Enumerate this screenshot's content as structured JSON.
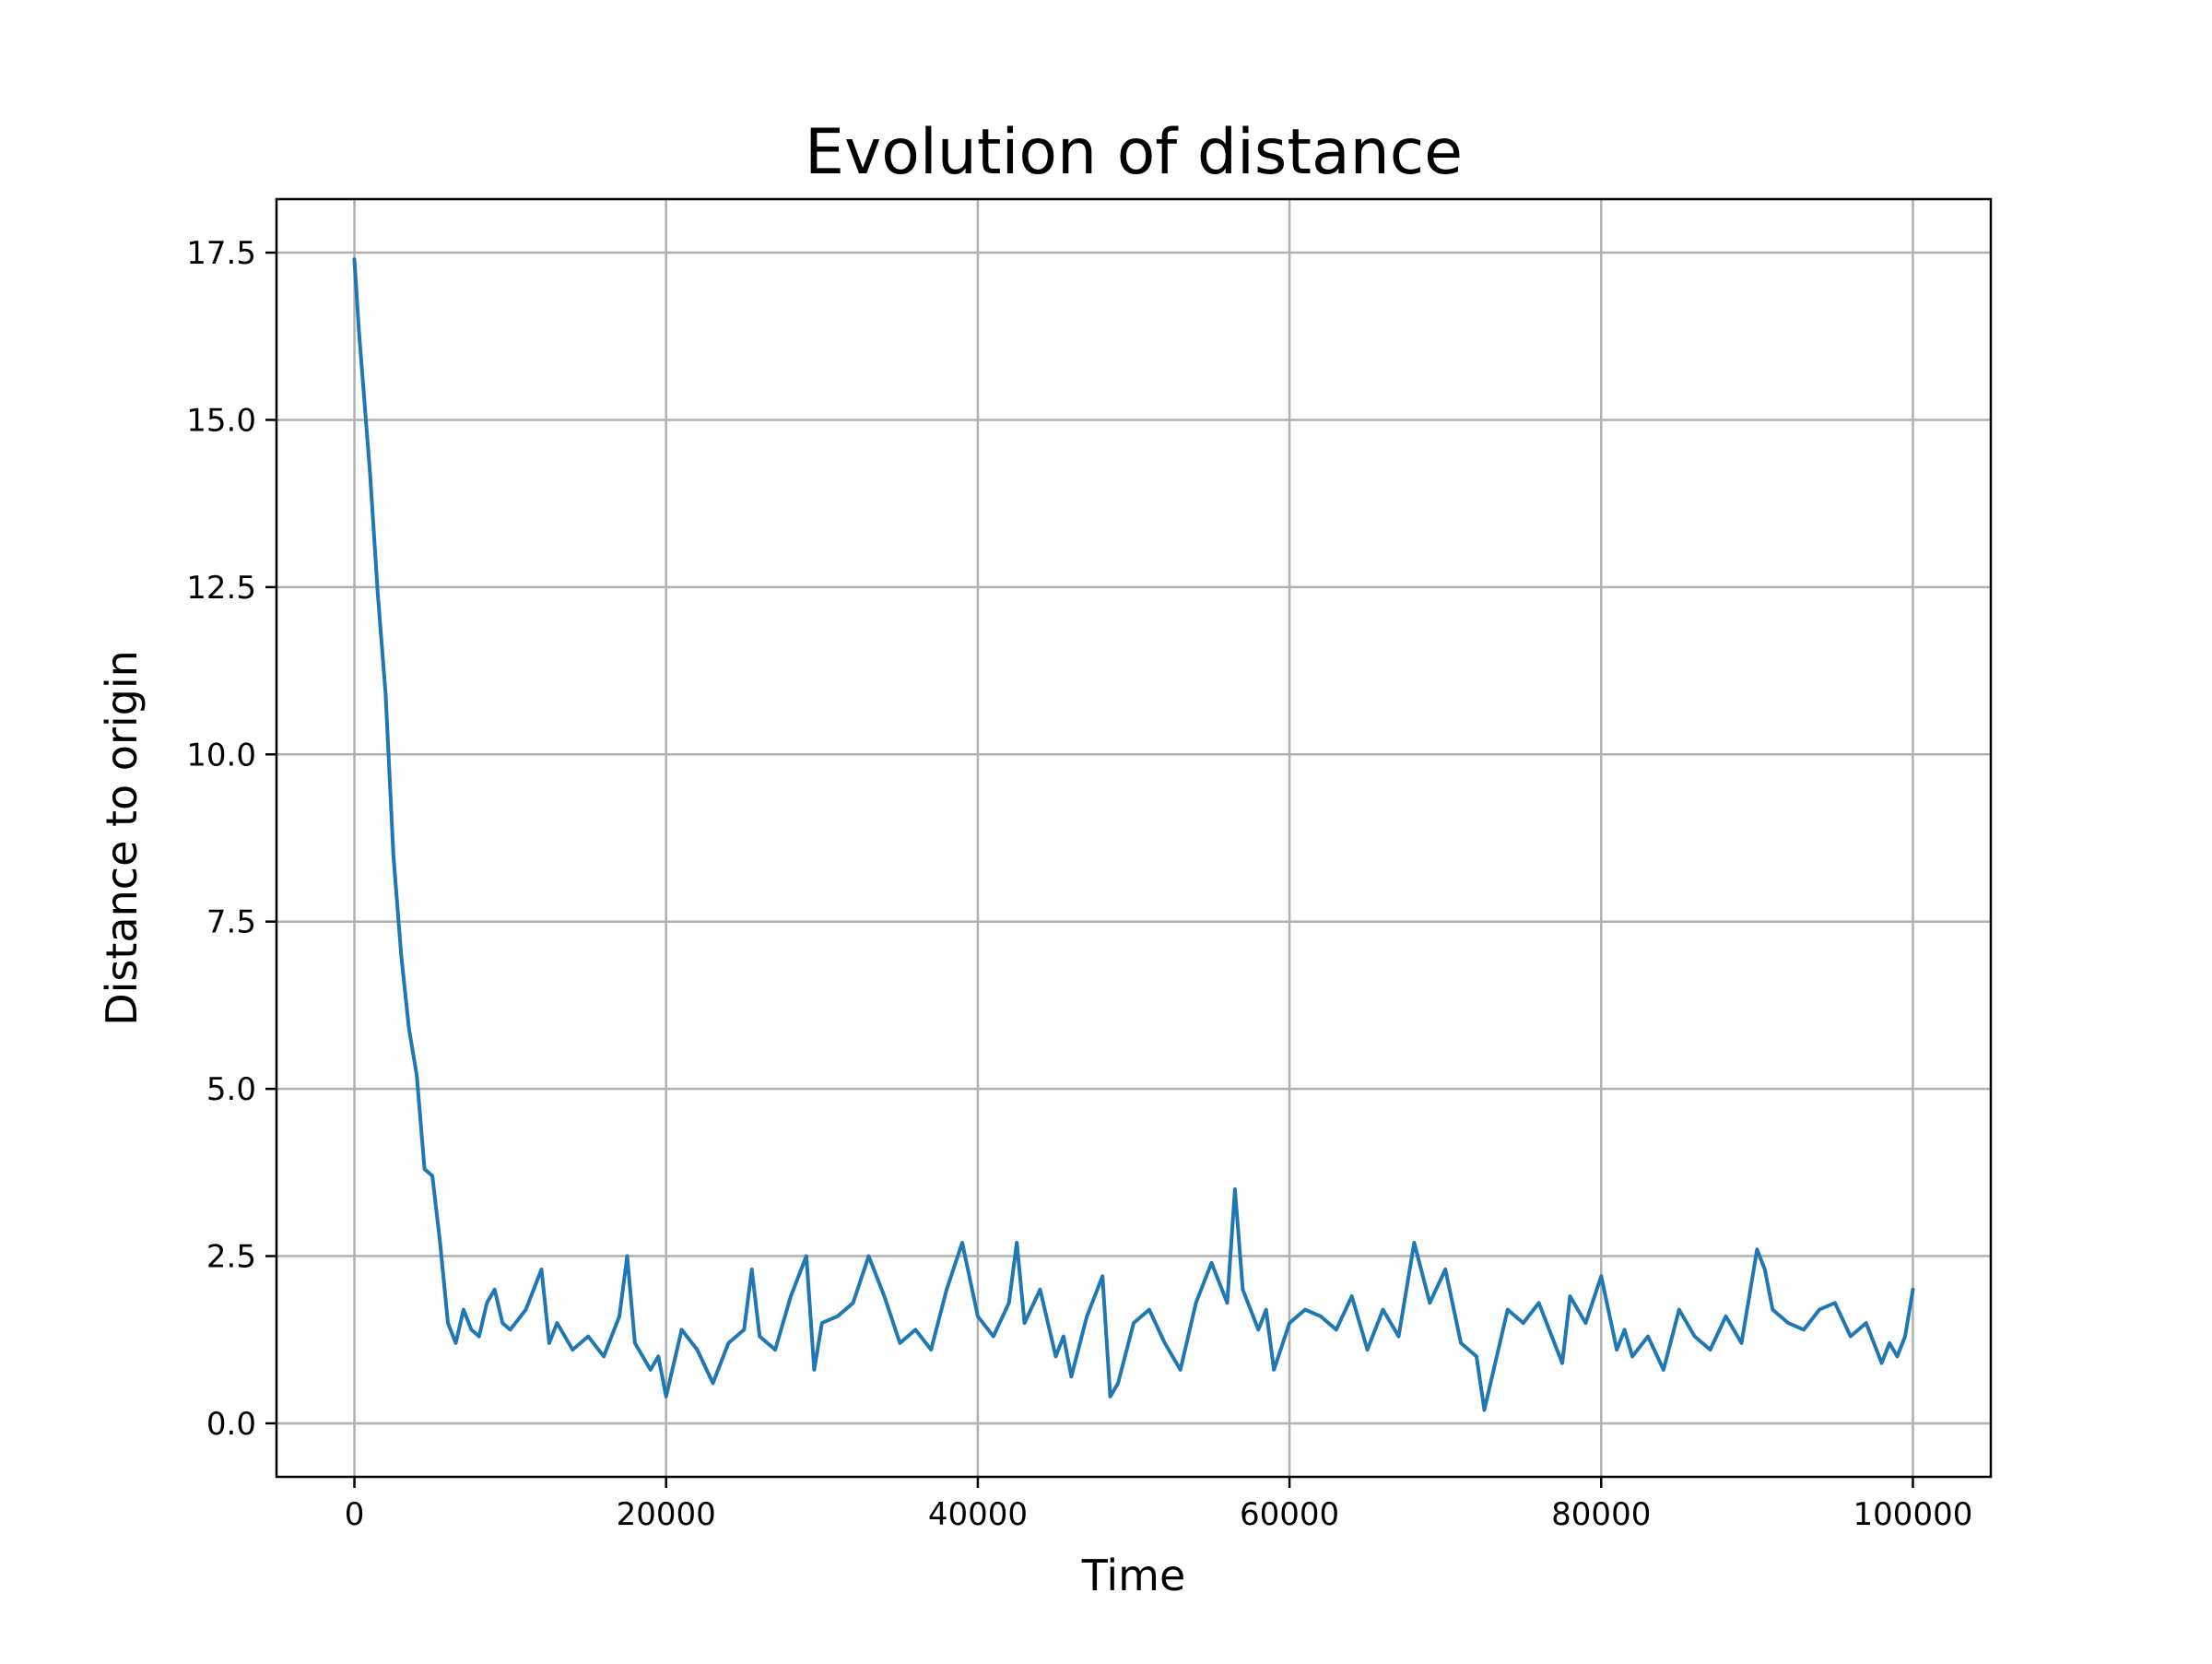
{
  "chart_data": {
    "type": "line",
    "title": "Evolution of distance",
    "xlabel": "Time",
    "ylabel": "Distance to origin",
    "xlim": [
      -5000,
      105000
    ],
    "ylim": [
      -0.8,
      18.3
    ],
    "xticks": [
      0,
      20000,
      40000,
      60000,
      80000,
      100000
    ],
    "xtick_labels": [
      "0",
      "20000",
      "40000",
      "60000",
      "80000",
      "100000"
    ],
    "yticks": [
      0.0,
      2.5,
      5.0,
      7.5,
      10.0,
      12.5,
      15.0,
      17.5
    ],
    "ytick_labels": [
      "0.0",
      "2.5",
      "5.0",
      "7.5",
      "10.0",
      "12.5",
      "15.0",
      "17.5"
    ],
    "grid": true,
    "legend": "none",
    "colors": {
      "line": "#1f77b4",
      "grid": "#b0b0b0",
      "axes": "#000000"
    },
    "series": [
      {
        "x": [
          0,
          300,
          600,
          1000,
          1500,
          2000,
          2500,
          3000,
          3500,
          4000,
          4500,
          5000,
          5500,
          6000,
          6500,
          7000,
          7500,
          8000,
          8500,
          9000,
          9500,
          10000,
          11000,
          12000,
          12500,
          13000,
          14000,
          15000,
          16000,
          17000,
          17500,
          18000,
          19000,
          19500,
          20000,
          21000,
          22000,
          23000,
          24000,
          25000,
          25500,
          26000,
          27000,
          28000,
          29000,
          29500,
          30000,
          31000,
          32000,
          33000,
          34000,
          35000,
          36000,
          37000,
          38000,
          39000,
          40000,
          41000,
          42000,
          42500,
          43000,
          44000,
          45000,
          45500,
          46000,
          47000,
          48000,
          48500,
          49000,
          50000,
          51000,
          52000,
          53000,
          54000,
          55000,
          56000,
          56500,
          57000,
          58000,
          58500,
          59000,
          60000,
          61000,
          62000,
          63000,
          64000,
          65000,
          66000,
          67000,
          68000,
          69000,
          70000,
          71000,
          72000,
          72500,
          73000,
          74000,
          75000,
          76000,
          77000,
          77500,
          78000,
          79000,
          80000,
          81000,
          81500,
          82000,
          83000,
          84000,
          85000,
          86000,
          87000,
          88000,
          89000,
          90000,
          90500,
          91000,
          92000,
          93000,
          94000,
          95000,
          96000,
          97000,
          98000,
          98500,
          99000,
          99500,
          100000
        ],
        "y": [
          17.4,
          16.3,
          15.4,
          14.2,
          12.4,
          10.9,
          8.5,
          7.0,
          5.9,
          5.2,
          3.8,
          3.7,
          2.7,
          1.5,
          1.2,
          1.7,
          1.4,
          1.3,
          1.8,
          2.0,
          1.5,
          1.4,
          1.7,
          2.3,
          1.2,
          1.5,
          1.1,
          1.3,
          1.0,
          1.6,
          2.5,
          1.2,
          0.8,
          1.0,
          0.4,
          1.4,
          1.1,
          0.6,
          1.2,
          1.4,
          2.3,
          1.3,
          1.1,
          1.9,
          2.5,
          0.8,
          1.5,
          1.6,
          1.8,
          2.5,
          1.9,
          1.2,
          1.4,
          1.1,
          2.0,
          2.7,
          1.6,
          1.3,
          1.8,
          2.7,
          1.5,
          2.0,
          1.0,
          1.3,
          0.7,
          1.6,
          2.2,
          0.4,
          0.6,
          1.5,
          1.7,
          1.2,
          0.8,
          1.8,
          2.4,
          1.8,
          3.5,
          2.0,
          1.4,
          1.7,
          0.8,
          1.5,
          1.7,
          1.6,
          1.4,
          1.9,
          1.1,
          1.7,
          1.3,
          2.7,
          1.8,
          2.3,
          1.2,
          1.0,
          0.2,
          0.7,
          1.7,
          1.5,
          1.8,
          1.2,
          0.9,
          1.9,
          1.5,
          2.2,
          1.1,
          1.4,
          1.0,
          1.3,
          0.8,
          1.7,
          1.3,
          1.1,
          1.6,
          1.2,
          2.6,
          2.3,
          1.7,
          1.5,
          1.4,
          1.7,
          1.8,
          1.3,
          1.5,
          0.9,
          1.2,
          1.0,
          1.3,
          2.0
        ]
      }
    ]
  }
}
